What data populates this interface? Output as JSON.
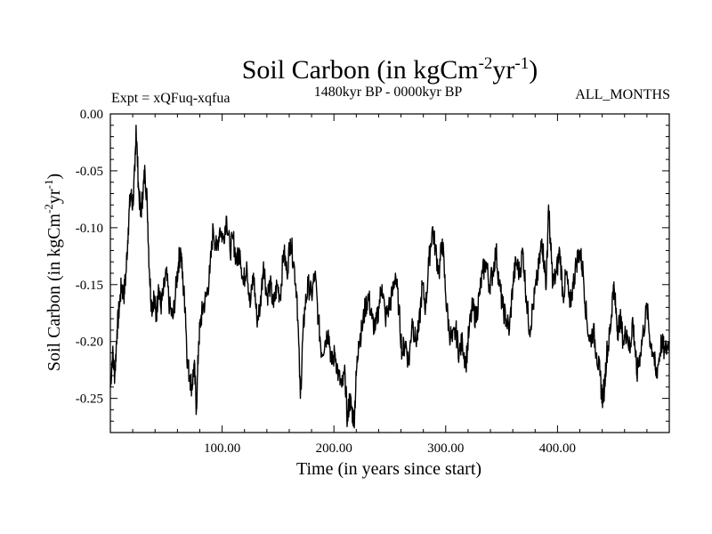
{
  "chart_data": {
    "type": "line",
    "title": "Soil Carbon (in kgCm",
    "title_sup1": "-2",
    "title_mid": "yr",
    "title_sup2": "-1",
    "title_end": ")",
    "subtitle_left": "Expt = xQFuq-xqfua",
    "subtitle_center": "1480kyr BP - 0000kyr BP",
    "subtitle_right": "ALL_MONTHS",
    "xlabel": "Time (in years since start)",
    "ylabel": "Soil Carbon (in kgCm",
    "ylabel_sup1": "-2",
    "ylabel_mid": "yr",
    "ylabel_sup2": "-1",
    "ylabel_end": ")",
    "xlim": [
      0,
      500
    ],
    "ylim": [
      -0.28,
      0.0
    ],
    "x_ticks": [
      100,
      200,
      300,
      400
    ],
    "x_tick_labels": [
      "100.00",
      "200.00",
      "300.00",
      "400.00"
    ],
    "y_ticks": [
      0.0,
      -0.05,
      -0.1,
      -0.15,
      -0.2,
      -0.25
    ],
    "y_tick_labels": [
      "0.00",
      "-0.05",
      "-0.10",
      "-0.15",
      "-0.20",
      "-0.25"
    ],
    "series": [
      {
        "name": "Soil Carbon",
        "color": "#000000",
        "points": [
          [
            0,
            -0.24
          ],
          [
            2,
            -0.21
          ],
          [
            4,
            -0.23
          ],
          [
            6,
            -0.19
          ],
          [
            8,
            -0.17
          ],
          [
            10,
            -0.15
          ],
          [
            12,
            -0.16
          ],
          [
            14,
            -0.14
          ],
          [
            16,
            -0.1
          ],
          [
            18,
            -0.07
          ],
          [
            20,
            -0.08
          ],
          [
            22,
            -0.05
          ],
          [
            23,
            -0.01
          ],
          [
            25,
            -0.06
          ],
          [
            27,
            -0.09
          ],
          [
            29,
            -0.07
          ],
          [
            31,
            -0.05
          ],
          [
            33,
            -0.08
          ],
          [
            35,
            -0.14
          ],
          [
            37,
            -0.17
          ],
          [
            39,
            -0.16
          ],
          [
            41,
            -0.18
          ],
          [
            43,
            -0.15
          ],
          [
            45,
            -0.17
          ],
          [
            47,
            -0.16
          ],
          [
            50,
            -0.14
          ],
          [
            53,
            -0.17
          ],
          [
            56,
            -0.18
          ],
          [
            59,
            -0.15
          ],
          [
            61,
            -0.13
          ],
          [
            63,
            -0.12
          ],
          [
            65,
            -0.15
          ],
          [
            67,
            -0.17
          ],
          [
            69,
            -0.22
          ],
          [
            71,
            -0.23
          ],
          [
            73,
            -0.24
          ],
          [
            75,
            -0.22
          ],
          [
            77,
            -0.26
          ],
          [
            79,
            -0.2
          ],
          [
            81,
            -0.18
          ],
          [
            83,
            -0.17
          ],
          [
            86,
            -0.16
          ],
          [
            89,
            -0.14
          ],
          [
            92,
            -0.1
          ],
          [
            95,
            -0.12
          ],
          [
            98,
            -0.1
          ],
          [
            101,
            -0.11
          ],
          [
            104,
            -0.09
          ],
          [
            107,
            -0.12
          ],
          [
            110,
            -0.11
          ],
          [
            113,
            -0.13
          ],
          [
            116,
            -0.12
          ],
          [
            119,
            -0.15
          ],
          [
            122,
            -0.13
          ],
          [
            125,
            -0.17
          ],
          [
            128,
            -0.14
          ],
          [
            131,
            -0.18
          ],
          [
            134,
            -0.17
          ],
          [
            137,
            -0.13
          ],
          [
            140,
            -0.16
          ],
          [
            143,
            -0.15
          ],
          [
            146,
            -0.17
          ],
          [
            149,
            -0.15
          ],
          [
            152,
            -0.16
          ],
          [
            155,
            -0.12
          ],
          [
            158,
            -0.14
          ],
          [
            161,
            -0.11
          ],
          [
            164,
            -0.13
          ],
          [
            167,
            -0.16
          ],
          [
            170,
            -0.25
          ],
          [
            172,
            -0.2
          ],
          [
            174,
            -0.17
          ],
          [
            177,
            -0.15
          ],
          [
            180,
            -0.16
          ],
          [
            183,
            -0.14
          ],
          [
            186,
            -0.18
          ],
          [
            189,
            -0.21
          ],
          [
            192,
            -0.2
          ],
          [
            195,
            -0.19
          ],
          [
            198,
            -0.22
          ],
          [
            201,
            -0.21
          ],
          [
            204,
            -0.23
          ],
          [
            207,
            -0.24
          ],
          [
            210,
            -0.23
          ],
          [
            212,
            -0.27
          ],
          [
            214,
            -0.25
          ],
          [
            216,
            -0.26
          ],
          [
            218,
            -0.27
          ],
          [
            220,
            -0.23
          ],
          [
            222,
            -0.2
          ],
          [
            225,
            -0.19
          ],
          [
            228,
            -0.17
          ],
          [
            231,
            -0.16
          ],
          [
            234,
            -0.18
          ],
          [
            237,
            -0.19
          ],
          [
            240,
            -0.17
          ],
          [
            243,
            -0.15
          ],
          [
            246,
            -0.18
          ],
          [
            249,
            -0.17
          ],
          [
            252,
            -0.16
          ],
          [
            255,
            -0.14
          ],
          [
            258,
            -0.17
          ],
          [
            261,
            -0.21
          ],
          [
            264,
            -0.2
          ],
          [
            267,
            -0.22
          ],
          [
            270,
            -0.18
          ],
          [
            273,
            -0.2
          ],
          [
            276,
            -0.19
          ],
          [
            279,
            -0.15
          ],
          [
            282,
            -0.17
          ],
          [
            285,
            -0.13
          ],
          [
            288,
            -0.1
          ],
          [
            291,
            -0.12
          ],
          [
            294,
            -0.14
          ],
          [
            297,
            -0.11
          ],
          [
            300,
            -0.16
          ],
          [
            303,
            -0.19
          ],
          [
            306,
            -0.2
          ],
          [
            309,
            -0.19
          ],
          [
            312,
            -0.21
          ],
          [
            315,
            -0.2
          ],
          [
            318,
            -0.22
          ],
          [
            321,
            -0.19
          ],
          [
            324,
            -0.17
          ],
          [
            327,
            -0.18
          ],
          [
            330,
            -0.16
          ],
          [
            333,
            -0.14
          ],
          [
            336,
            -0.13
          ],
          [
            339,
            -0.15
          ],
          [
            342,
            -0.14
          ],
          [
            345,
            -0.12
          ],
          [
            348,
            -0.15
          ],
          [
            351,
            -0.17
          ],
          [
            354,
            -0.18
          ],
          [
            357,
            -0.19
          ],
          [
            360,
            -0.15
          ],
          [
            363,
            -0.13
          ],
          [
            366,
            -0.14
          ],
          [
            369,
            -0.12
          ],
          [
            372,
            -0.16
          ],
          [
            375,
            -0.19
          ],
          [
            378,
            -0.17
          ],
          [
            381,
            -0.15
          ],
          [
            384,
            -0.13
          ],
          [
            386,
            -0.11
          ],
          [
            388,
            -0.13
          ],
          [
            390,
            -0.15
          ],
          [
            392,
            -0.08
          ],
          [
            394,
            -0.12
          ],
          [
            396,
            -0.15
          ],
          [
            399,
            -0.14
          ],
          [
            402,
            -0.12
          ],
          [
            405,
            -0.16
          ],
          [
            408,
            -0.14
          ],
          [
            411,
            -0.17
          ],
          [
            414,
            -0.15
          ],
          [
            417,
            -0.13
          ],
          [
            420,
            -0.12
          ],
          [
            423,
            -0.14
          ],
          [
            426,
            -0.18
          ],
          [
            429,
            -0.2
          ],
          [
            432,
            -0.19
          ],
          [
            435,
            -0.21
          ],
          [
            438,
            -0.23
          ],
          [
            440,
            -0.25
          ],
          [
            442,
            -0.24
          ],
          [
            444,
            -0.21
          ],
          [
            446,
            -0.2
          ],
          [
            448,
            -0.18
          ],
          [
            450,
            -0.15
          ],
          [
            452,
            -0.17
          ],
          [
            454,
            -0.19
          ],
          [
            456,
            -0.18
          ],
          [
            459,
            -0.2
          ],
          [
            462,
            -0.19
          ],
          [
            465,
            -0.21
          ],
          [
            467,
            -0.18
          ],
          [
            469,
            -0.2
          ],
          [
            471,
            -0.23
          ],
          [
            474,
            -0.21
          ],
          [
            477,
            -0.19
          ],
          [
            480,
            -0.17
          ],
          [
            483,
            -0.2
          ],
          [
            486,
            -0.21
          ],
          [
            488,
            -0.23
          ],
          [
            490,
            -0.22
          ],
          [
            493,
            -0.2
          ],
          [
            496,
            -0.21
          ],
          [
            500,
            -0.2
          ]
        ]
      }
    ]
  }
}
